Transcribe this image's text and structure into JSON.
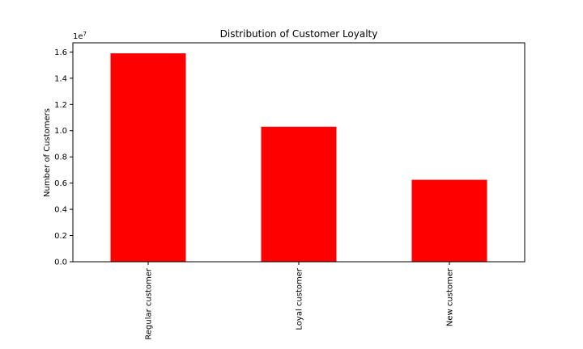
{
  "chart_data": {
    "type": "bar",
    "title": "Distribution of Customer Loyalty",
    "xlabel": "",
    "ylabel": "Number of Customers",
    "y_scale_multiplier_label": "1e7",
    "categories": [
      "Regular customer",
      "Loyal customer",
      "New customer"
    ],
    "values": [
      15900000,
      10300000,
      6250000
    ],
    "ylim": [
      0,
      16700000
    ],
    "y_ticks": [
      0,
      2000000,
      4000000,
      6000000,
      8000000,
      10000000,
      12000000,
      14000000,
      16000000
    ],
    "y_tick_labels": [
      "0.0",
      "0.2",
      "0.4",
      "0.6",
      "0.8",
      "1.0",
      "1.2",
      "1.4",
      "1.6"
    ],
    "bar_color": "#ff0000",
    "grid": false,
    "legend": "none"
  }
}
